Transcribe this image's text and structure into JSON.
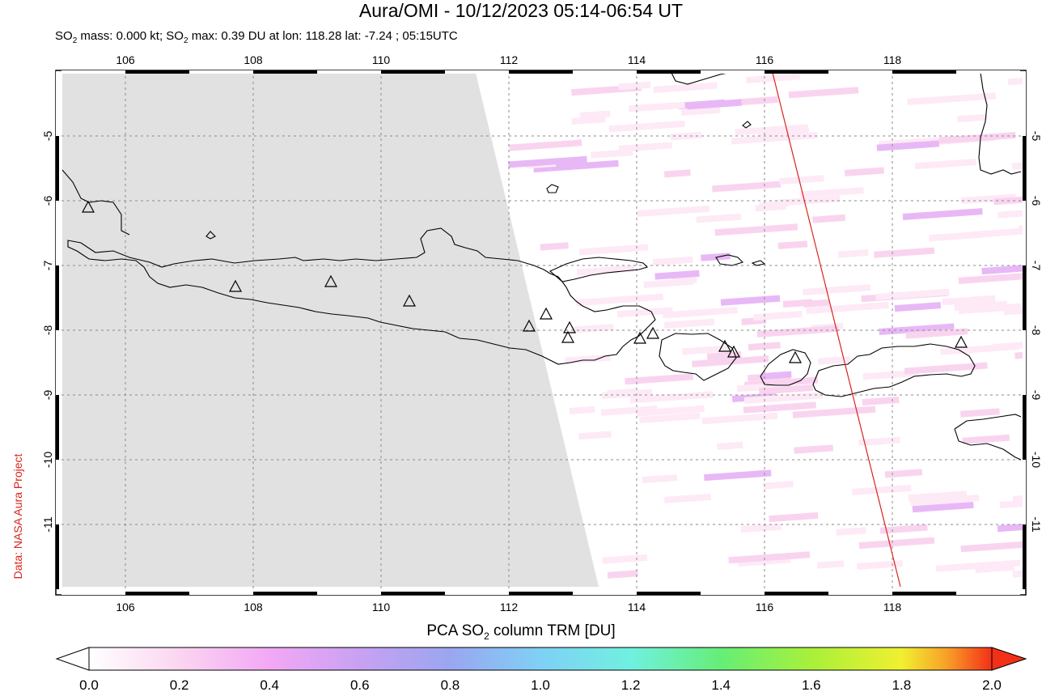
{
  "title": "Aura/OMI - 10/12/2023 05:14-06:54 UT",
  "subtitle": {
    "prefix": "SO",
    "sub": "2",
    "mid": " mass: 0.000 kt; SO",
    "sub2": "2",
    "rest": " max: 0.39 DU at lon: 118.28 lat: -7.24 ; 05:15UTC"
  },
  "credit": "Data: NASA Aura Project",
  "map": {
    "lon_ticks": [
      "106",
      "108",
      "110",
      "112",
      "114",
      "116",
      "118"
    ],
    "lat_ticks": [
      "-5",
      "-6",
      "-7",
      "-8",
      "-9",
      "-10",
      "-11"
    ],
    "lon_range": [
      105,
      120
    ],
    "lat_range": [
      -12,
      -4
    ],
    "no_data_color": "#e1e1e1",
    "track_color": "#d8251b",
    "volcano_count": 14
  },
  "colorbar": {
    "label_prefix": "PCA SO",
    "label_sub": "2",
    "label_rest": " column TRM [DU]",
    "ticks": [
      "0.0",
      "0.2",
      "0.4",
      "0.6",
      "0.8",
      "1.0",
      "1.2",
      "1.4",
      "1.6",
      "1.8",
      "2.0"
    ],
    "colors": [
      "#ffffff",
      "#fbd5f0",
      "#f2a8f5",
      "#c8a1f2",
      "#9aa6f0",
      "#7fd0f5",
      "#70f0e0",
      "#66ee77",
      "#a8f03a",
      "#f0f030",
      "#f8a028",
      "#f23018"
    ]
  }
}
